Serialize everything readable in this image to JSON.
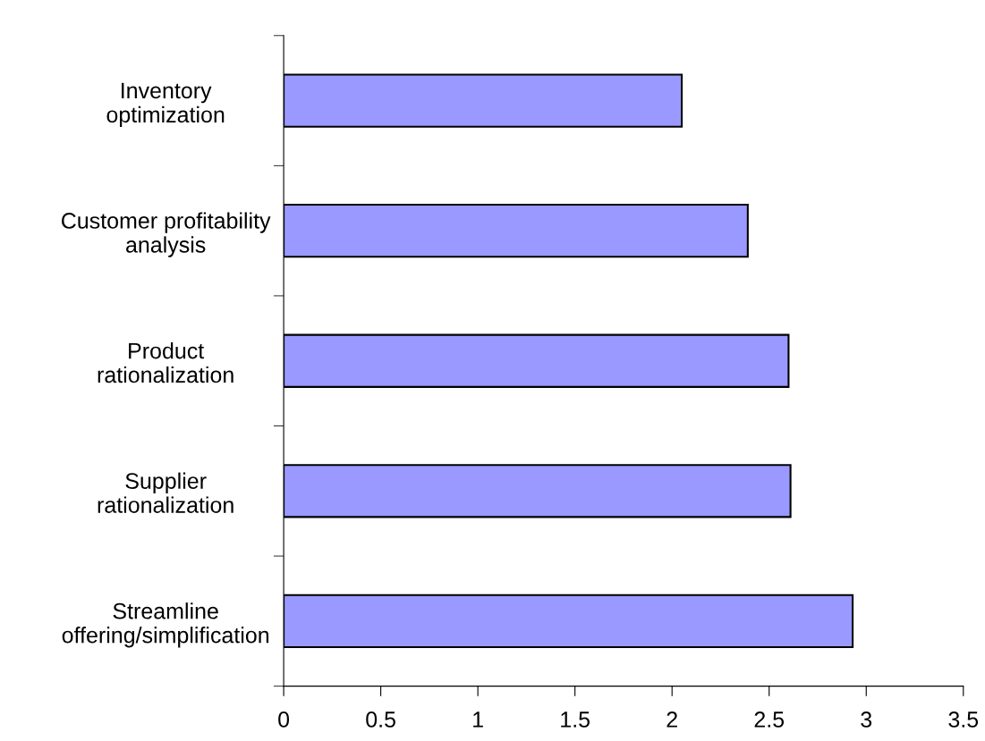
{
  "chart_data": {
    "type": "bar",
    "orientation": "horizontal",
    "categories": [
      "Inventory\noptimization",
      "Customer profitability\nanalysis",
      "Product\nrationalization",
      "Supplier\nrationalization",
      "Streamline\noffering/simplification"
    ],
    "values": [
      2.05,
      2.39,
      2.6,
      2.61,
      2.93
    ],
    "color": "#9999ff",
    "xlim": [
      0,
      3.5
    ],
    "xticks": [
      0,
      0.5,
      1,
      1.5,
      2,
      2.5,
      3,
      3.5
    ],
    "grid": false,
    "legend": false
  }
}
